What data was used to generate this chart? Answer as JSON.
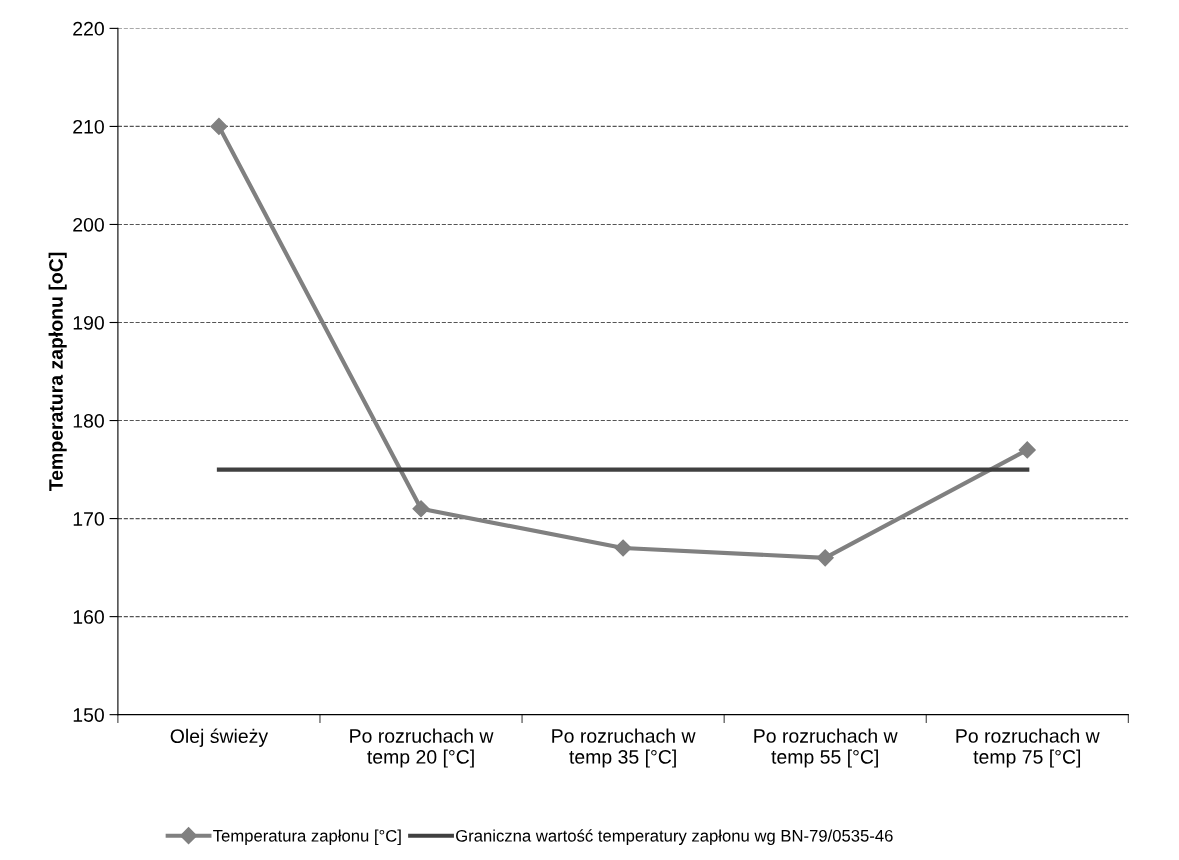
{
  "chart_data": {
    "type": "line",
    "ylabel": "Temperatura zapłonu [oC]",
    "categories": [
      "Olej świeży",
      "Po rozruchach w\ntemp 20 [°C]",
      "Po rozruchach w\ntemp 35 [°C]",
      "Po rozruchach w\ntemp 55 [°C]",
      "Po rozruchach w\ntemp 75 [°C]"
    ],
    "series": [
      {
        "name": "Temperatura zapłonu [°C]",
        "color": "#808080",
        "values": [
          210,
          171,
          167,
          166,
          177
        ],
        "marker": "diamond"
      },
      {
        "name": "Graniczna wartość temperatury zapłonu wg BN-79/0535-46",
        "color": "#404040",
        "values": [
          175,
          175,
          175,
          175,
          175
        ],
        "marker": "none"
      }
    ],
    "ylim": [
      150,
      220
    ],
    "yticks": [
      150,
      160,
      170,
      180,
      190,
      200,
      210,
      220
    ],
    "grid": "y",
    "legend": "bottom",
    "line_style": "solid"
  }
}
